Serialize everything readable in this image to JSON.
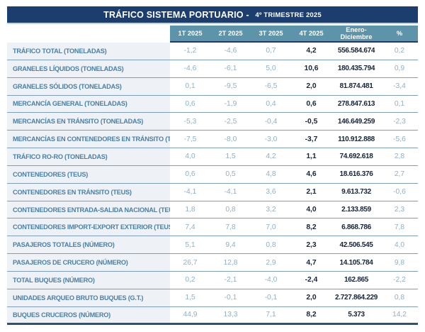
{
  "title": {
    "main": "TRÁFICO SISTEMA PORTUARIO - ",
    "sub": "4º TRIMESTRE 2025"
  },
  "colors": {
    "title_bar": "#1b3e6f",
    "header_band": "#5e94a9",
    "label_text": "#4a80a8",
    "light_value_text": "#8fb0c9",
    "dark_value_text": "#16243a",
    "row_label_bg": "#eef1f5",
    "row_separator": "#7f9fb9",
    "bottom_rule": "#2c5470"
  },
  "header": {
    "q1": "1T 2025",
    "q2": "2T 2025",
    "q3": "3T 2025",
    "q4": "4T 2025",
    "total_line1": "Enero-",
    "total_line2": "Diciembre",
    "pct": "%"
  },
  "chart_data": {
    "type": "table",
    "title": "TRÁFICO SISTEMA PORTUARIO - 4º TRIMESTRE 2025",
    "columns": [
      "1T 2025",
      "2T 2025",
      "3T 2025",
      "4T 2025",
      "Enero-Diciembre",
      "%"
    ],
    "rows": [
      {
        "label": "TRÁFICO TOTAL (TONELADAS)",
        "q1": "-1,2",
        "q2": "-4,6",
        "q3": "0,7",
        "q4": "4,2",
        "total": "556.584.674",
        "pct": "0,2"
      },
      {
        "label": "GRANELES LÍQUIDOS (TONELADAS)",
        "q1": "-4,6",
        "q2": "-6,1",
        "q3": "5,0",
        "q4": "10,6",
        "total": "180.435.794",
        "pct": "0,9"
      },
      {
        "label": "GRANELES SÓLIDOS (TONELADAS)",
        "q1": "0,1",
        "q2": "-9,5",
        "q3": "-6,5",
        "q4": "2,0",
        "total": "81.874.481",
        "pct": "-3,4"
      },
      {
        "label": "MERCANCÍA GENERAL (TONELADAS)",
        "q1": "0,6",
        "q2": "-1,9",
        "q3": "0,4",
        "q4": "0,6",
        "total": "278.847.613",
        "pct": "0,1"
      },
      {
        "label": "MERCANCÍAS EN TRÁNSITO (TONELADAS)",
        "q1": "-5,3",
        "q2": "-2,5",
        "q3": "-0,4",
        "q4": "-0,5",
        "total": "146.649.259",
        "pct": "-2,3"
      },
      {
        "label": "MERCANCÍAS EN CONTENEDORES EN TRÁNSITO (TN)",
        "q1": "-7,5",
        "q2": "-8,0",
        "q3": "-3,0",
        "q4": "-3,7",
        "total": "110.912.888",
        "pct": "-5,6"
      },
      {
        "label": "TRÁFICO RO-RO (TONELADAS)",
        "q1": "4,0",
        "q2": "1,5",
        "q3": "4,2",
        "q4": "1,1",
        "total": "74.692.618",
        "pct": "2,8"
      },
      {
        "label": "CONTENEDORES (TEUS)",
        "q1": "0,6",
        "q2": "0,5",
        "q3": "4,8",
        "q4": "4,6",
        "total": "18.616.376",
        "pct": "2,7"
      },
      {
        "label": "CONTENEDORES EN TRÁNSITO (TEUS)",
        "q1": "-4,1",
        "q2": "-4,1",
        "q3": "3,6",
        "q4": "2,1",
        "total": "9.613.732",
        "pct": "-0,6"
      },
      {
        "label": "CONTENEDORES ENTRADA-SALIDA NACIONAL (TEUS)",
        "q1": "1,8",
        "q2": "0,8",
        "q3": "3,2",
        "q4": "4,0",
        "total": "2.133.859",
        "pct": "2,3"
      },
      {
        "label": "CONTENEDORES IMPORT-EXPORT EXTERIOR (TEUS)",
        "q1": "7,4",
        "q2": "7,8",
        "q3": "7,0",
        "q4": "8,2",
        "total": "6.868.786",
        "pct": "7,8"
      },
      {
        "label": "PASAJEROS TOTALES (NÚMERO)",
        "q1": "5,1",
        "q2": "9,4",
        "q3": "0,8",
        "q4": "2,3",
        "total": "42.506.545",
        "pct": "4,0"
      },
      {
        "label": "PASAJEROS DE CRUCERO (NÚMERO)",
        "q1": "26,7",
        "q2": "12,8",
        "q3": "2,9",
        "q4": "4,7",
        "total": "14.105.784",
        "pct": "9,8"
      },
      {
        "label": "TOTAL BUQUES (NÚMERO)",
        "q1": "0,2",
        "q2": "-2,1",
        "q3": "-4,0",
        "q4": "-2,4",
        "total": "162.865",
        "pct": "-2,2"
      },
      {
        "label": "UNIDADES ARQUEO BRUTO BUQUES (G.T.)",
        "q1": "1,5",
        "q2": "-0,1",
        "q3": "-0,1",
        "q4": "2,0",
        "total": "2.727.864.229",
        "pct": "0,8"
      },
      {
        "label": "BUQUES CRUCEROS (NÚMERO)",
        "q1": "44,9",
        "q2": "13,3",
        "q3": "7,1",
        "q4": "8,2",
        "total": "5.373",
        "pct": "14,2"
      }
    ]
  }
}
